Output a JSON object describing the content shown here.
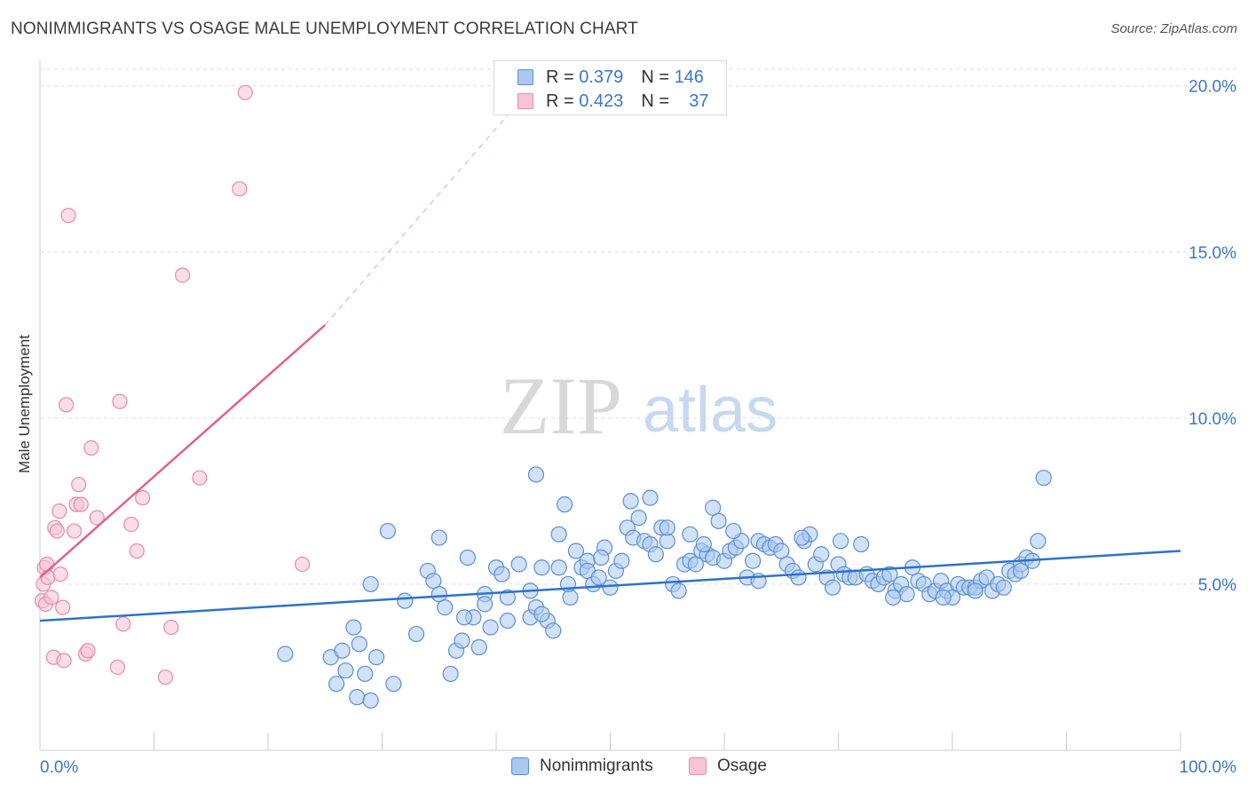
{
  "title": "NONIMMIGRANTS VS OSAGE MALE UNEMPLOYMENT CORRELATION CHART",
  "source": "Source: ZipAtlas.com",
  "watermark": {
    "zip": "ZIP",
    "atlas": "atlas"
  },
  "legend_stats": [
    {
      "r_label": "R =",
      "r_value": "0.379",
      "n_label": "N =",
      "n_value": "146"
    },
    {
      "r_label": "R =",
      "r_value": "0.423",
      "n_label": "N =",
      "n_value": "37"
    }
  ],
  "colors": {
    "blue_fill": "#a9c8f2",
    "blue_stroke": "#5b8fd6",
    "blue_line": "#2d72cc",
    "pink_fill": "#f8c3d3",
    "pink_stroke": "#e88aa8",
    "pink_line": "#e4608c",
    "tick_label": "#3a77c9",
    "grid": "#dddddd"
  },
  "chart_data": {
    "type": "scatter",
    "title": "NONIMMIGRANTS VS OSAGE MALE UNEMPLOYMENT CORRELATION CHART",
    "xlabel": "",
    "ylabel": "Male Unemployment",
    "xlim": [
      0,
      100
    ],
    "ylim": [
      0,
      20.5
    ],
    "x_tick_labels": [
      "0.0%",
      "100.0%"
    ],
    "y_ticks": [
      5,
      10,
      15,
      20
    ],
    "y_tick_labels": [
      "5.0%",
      "10.0%",
      "15.0%",
      "20.0%"
    ],
    "grid": "horizontal dashed",
    "legend": "bottom-center",
    "series": [
      {
        "name": "Nonimmigrants",
        "r": 0.379,
        "n": 146,
        "trend": {
          "x": [
            0,
            100
          ],
          "y": [
            3.9,
            6.0
          ]
        },
        "points": [
          [
            21.5,
            2.9
          ],
          [
            25.5,
            2.8
          ],
          [
            26,
            2.0
          ],
          [
            26.5,
            3.0
          ],
          [
            26.8,
            2.4
          ],
          [
            27.5,
            3.7
          ],
          [
            27.8,
            1.6
          ],
          [
            28.5,
            2.3
          ],
          [
            29,
            1.5
          ],
          [
            29.5,
            2.8
          ],
          [
            29,
            5.0
          ],
          [
            30.5,
            6.6
          ],
          [
            31,
            2.0
          ],
          [
            33,
            3.5
          ],
          [
            34,
            5.4
          ],
          [
            35,
            6.4
          ],
          [
            35,
            4.7
          ],
          [
            35.5,
            4.3
          ],
          [
            36,
            2.3
          ],
          [
            36.5,
            3.0
          ],
          [
            37,
            3.3
          ],
          [
            37.5,
            5.8
          ],
          [
            38,
            4.0
          ],
          [
            38.5,
            3.1
          ],
          [
            39,
            4.7
          ],
          [
            39.5,
            3.7
          ],
          [
            40,
            5.5
          ],
          [
            40.5,
            5.3
          ],
          [
            41,
            4.6
          ],
          [
            42,
            5.6
          ],
          [
            43,
            4.8
          ],
          [
            43,
            4.0
          ],
          [
            43.5,
            4.3
          ],
          [
            44,
            5.5
          ],
          [
            44.5,
            3.9
          ],
          [
            45,
            3.6
          ],
          [
            45.5,
            5.5
          ],
          [
            46,
            7.4
          ],
          [
            46.5,
            4.6
          ],
          [
            47,
            6.0
          ],
          [
            47.5,
            5.5
          ],
          [
            48,
            5.7
          ],
          [
            48,
            5.4
          ],
          [
            48.5,
            5.0
          ],
          [
            49,
            5.2
          ],
          [
            49.5,
            6.1
          ],
          [
            50,
            4.9
          ],
          [
            50.5,
            5.4
          ],
          [
            51,
            5.7
          ],
          [
            51.5,
            6.7
          ],
          [
            51.8,
            7.5
          ],
          [
            52,
            6.4
          ],
          [
            52.5,
            7.0
          ],
          [
            53,
            6.3
          ],
          [
            53.5,
            6.2
          ],
          [
            53.5,
            7.6
          ],
          [
            54,
            5.9
          ],
          [
            54.5,
            6.7
          ],
          [
            55,
            6.3
          ],
          [
            55.5,
            5.0
          ],
          [
            56,
            4.8
          ],
          [
            56.5,
            5.6
          ],
          [
            57,
            6.5
          ],
          [
            57,
            5.7
          ],
          [
            57.5,
            5.6
          ],
          [
            58,
            6.0
          ],
          [
            58.5,
            5.9
          ],
          [
            59,
            5.8
          ],
          [
            59,
            7.3
          ],
          [
            59.5,
            6.9
          ],
          [
            60,
            5.7
          ],
          [
            60.5,
            6.0
          ],
          [
            61,
            6.1
          ],
          [
            61.5,
            6.3
          ],
          [
            62,
            5.2
          ],
          [
            62.5,
            5.7
          ],
          [
            63,
            6.3
          ],
          [
            63.5,
            6.2
          ],
          [
            64,
            6.1
          ],
          [
            64.5,
            6.2
          ],
          [
            65,
            6.0
          ],
          [
            65.5,
            5.6
          ],
          [
            66,
            5.4
          ],
          [
            66.5,
            5.2
          ],
          [
            67,
            6.3
          ],
          [
            67.5,
            6.5
          ],
          [
            68,
            5.6
          ],
          [
            68.5,
            5.9
          ],
          [
            69,
            5.2
          ],
          [
            69.5,
            4.9
          ],
          [
            70,
            5.6
          ],
          [
            70.5,
            5.3
          ],
          [
            71,
            5.2
          ],
          [
            71.5,
            5.2
          ],
          [
            72,
            6.2
          ],
          [
            72.5,
            5.3
          ],
          [
            73,
            5.1
          ],
          [
            73.5,
            5.0
          ],
          [
            74,
            5.2
          ],
          [
            74.5,
            5.3
          ],
          [
            75,
            4.8
          ],
          [
            75.5,
            5.0
          ],
          [
            76,
            4.7
          ],
          [
            76.5,
            5.5
          ],
          [
            77,
            5.1
          ],
          [
            77.5,
            5.0
          ],
          [
            78,
            4.7
          ],
          [
            78.5,
            4.8
          ],
          [
            79,
            5.1
          ],
          [
            79.5,
            4.8
          ],
          [
            80,
            4.6
          ],
          [
            80.5,
            5.0
          ],
          [
            81,
            4.9
          ],
          [
            81.5,
            4.9
          ],
          [
            82,
            4.9
          ],
          [
            82.5,
            5.1
          ],
          [
            83,
            5.2
          ],
          [
            83.5,
            4.8
          ],
          [
            84,
            5.0
          ],
          [
            84.5,
            4.9
          ],
          [
            85,
            5.4
          ],
          [
            85.5,
            5.3
          ],
          [
            86,
            5.6
          ],
          [
            86.5,
            5.8
          ],
          [
            87,
            5.7
          ],
          [
            87.5,
            6.3
          ],
          [
            88,
            8.2
          ],
          [
            43.5,
            8.3
          ],
          [
            45.5,
            6.5
          ],
          [
            34.5,
            5.1
          ],
          [
            37.2,
            4.0
          ],
          [
            41,
            3.9
          ],
          [
            46.3,
            5.0
          ],
          [
            49.2,
            5.8
          ],
          [
            55,
            6.7
          ],
          [
            58.2,
            6.2
          ],
          [
            60.8,
            6.6
          ],
          [
            63,
            5.1
          ],
          [
            66.8,
            6.4
          ],
          [
            70.2,
            6.3
          ],
          [
            74.8,
            4.6
          ],
          [
            79.2,
            4.6
          ],
          [
            82,
            4.8
          ],
          [
            86,
            5.4
          ],
          [
            28,
            3.2
          ],
          [
            32,
            4.5
          ],
          [
            39,
            4.4
          ],
          [
            44,
            4.1
          ]
        ]
      },
      {
        "name": "Osage",
        "r": 0.423,
        "n": 37,
        "trend": {
          "x": [
            0,
            25
          ],
          "y": [
            5.2,
            12.8
          ],
          "dashed_extension_to": [
            44.5,
            20.5
          ]
        },
        "points": [
          [
            0.2,
            4.5
          ],
          [
            0.3,
            5.0
          ],
          [
            0.4,
            5.5
          ],
          [
            0.5,
            4.4
          ],
          [
            0.6,
            5.6
          ],
          [
            0.7,
            5.2
          ],
          [
            1,
            4.6
          ],
          [
            1.2,
            2.8
          ],
          [
            1.3,
            6.7
          ],
          [
            1.5,
            6.6
          ],
          [
            1.7,
            7.2
          ],
          [
            1.8,
            5.3
          ],
          [
            2,
            4.3
          ],
          [
            2.1,
            2.7
          ],
          [
            2.3,
            10.4
          ],
          [
            2.5,
            16.1
          ],
          [
            3,
            6.6
          ],
          [
            3.2,
            7.4
          ],
          [
            3.4,
            8.0
          ],
          [
            3.6,
            7.4
          ],
          [
            4,
            2.9
          ],
          [
            4.2,
            3.0
          ],
          [
            4.5,
            9.1
          ],
          [
            5,
            7.0
          ],
          [
            6.8,
            2.5
          ],
          [
            7,
            10.5
          ],
          [
            7.3,
            3.8
          ],
          [
            8,
            6.8
          ],
          [
            8.5,
            6.0
          ],
          [
            9,
            7.6
          ],
          [
            11,
            2.2
          ],
          [
            11.5,
            3.7
          ],
          [
            12.5,
            14.3
          ],
          [
            14,
            8.2
          ],
          [
            17.5,
            16.9
          ],
          [
            18,
            19.8
          ],
          [
            23,
            5.6
          ]
        ]
      }
    ]
  }
}
